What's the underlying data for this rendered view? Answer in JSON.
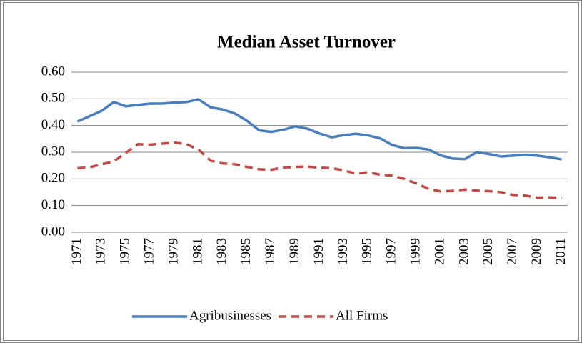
{
  "chart_data": {
    "type": "line",
    "title": "Median Asset Turnover",
    "categories": [
      "1971",
      null,
      "1973",
      null,
      "1975",
      null,
      "1977",
      null,
      "1979",
      null,
      "1981",
      null,
      "1983",
      null,
      "1985",
      null,
      "1987",
      null,
      "1989",
      null,
      "1991",
      null,
      "1993",
      null,
      "1995",
      null,
      "1997",
      null,
      "1999",
      null,
      "2001",
      null,
      "2003",
      null,
      "2005",
      null,
      "2007",
      null,
      "2009",
      null,
      "2011"
    ],
    "series": [
      {
        "name": "Agribusinesses",
        "color": "#4a7ebb",
        "dash": "solid",
        "values": [
          0.415,
          0.435,
          0.455,
          0.488,
          0.472,
          0.477,
          0.482,
          0.482,
          0.486,
          0.488,
          0.498,
          0.468,
          0.46,
          0.445,
          0.418,
          0.382,
          0.376,
          0.384,
          0.397,
          0.388,
          0.37,
          0.356,
          0.364,
          0.369,
          0.363,
          0.352,
          0.327,
          0.315,
          0.316,
          0.31,
          0.288,
          0.276,
          0.274,
          0.3,
          0.293,
          0.284,
          0.287,
          0.29,
          0.287,
          0.281,
          0.273
        ]
      },
      {
        "name": "All Firms",
        "color": "#be4b48",
        "dash": "dashed",
        "values": [
          0.24,
          0.243,
          0.255,
          0.265,
          0.298,
          0.33,
          0.328,
          0.332,
          0.336,
          0.33,
          0.31,
          0.268,
          0.258,
          0.255,
          0.245,
          0.236,
          0.234,
          0.243,
          0.245,
          0.246,
          0.242,
          0.24,
          0.232,
          0.22,
          0.225,
          0.216,
          0.212,
          0.2,
          0.183,
          0.163,
          0.153,
          0.155,
          0.16,
          0.156,
          0.154,
          0.15,
          0.14,
          0.137,
          0.13,
          0.131,
          0.128
        ]
      }
    ],
    "ylim": [
      0,
      0.6
    ],
    "yticks": [
      {
        "value": 0,
        "label": "0.00"
      },
      {
        "value": 0.1,
        "label": "0.10"
      },
      {
        "value": 0.2,
        "label": "0.20"
      },
      {
        "value": 0.3,
        "label": "0.30"
      },
      {
        "value": 0.4,
        "label": "0.40"
      },
      {
        "value": 0.5,
        "label": "0.50"
      },
      {
        "value": 0.6,
        "label": "0.60"
      }
    ],
    "grid": true,
    "legend": "bottom"
  }
}
